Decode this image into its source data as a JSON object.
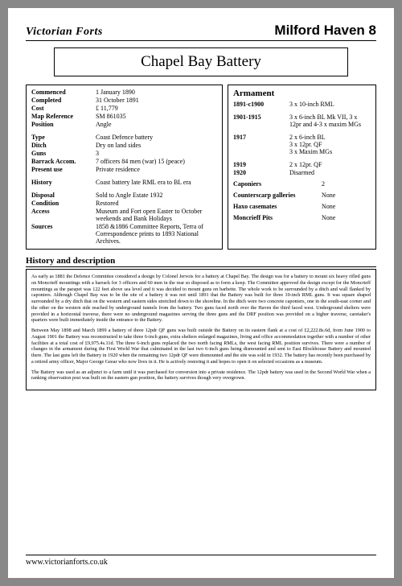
{
  "header": {
    "left": "Victorian Forts",
    "right": "Milford Haven   8"
  },
  "title": "Chapel Bay Battery",
  "left": {
    "commenced_lbl": "Commenced",
    "commenced": "1 January 1890",
    "completed_lbl": "Completed",
    "completed": "31 October 1891",
    "cost_lbl": "Cost",
    "cost": "£  11,779",
    "mapref_lbl": "Map Reference",
    "mapref": "SM 861035",
    "position_lbl": "Position",
    "position": "Angle",
    "type_lbl": "Type",
    "type": "Coast Defence battery",
    "ditch_lbl": "Ditch",
    "ditch": "Dry on land sides",
    "guns_lbl": "Guns",
    "guns": "3",
    "barrack_lbl": "Barrack Accom.",
    "barrack": "7 officers 84 men (war) 15 (peace)",
    "present_lbl": "Present use",
    "present": "Private residence",
    "history_lbl": "History",
    "history": "Coast battery late RML era to BL era",
    "disposal_lbl": "Disposal",
    "disposal": "Sold to Angle Estate 1932",
    "condition_lbl": "Condition",
    "condition": "Restored",
    "access_lbl": "Access",
    "access": "Museum and Fort open Easter to October weekends and Bank Holidays",
    "sources_lbl": "Sources",
    "sources": "1858 &1886 Committee Reports, Terra of Correspondence prints to 1893 National Archives."
  },
  "right": {
    "hdr": "Armament",
    "r1_lbl": "1891-c1900",
    "r1": "3 x 10-inch RML",
    "r2_lbl": "1901-1915",
    "r2": "3 x 6-inch BL Mk VII, 3 x 12pr and 4-3 x maxim MGs",
    "r3_lbl": "1917",
    "r3": "2 x 6-inch BL\n3 x 12pr. QF\n3 x Maxim MGs",
    "r4_lbl": "1919",
    "r4": "2 x 12pr. QF",
    "r5_lbl": "1920",
    "r5": "Disarmed",
    "cap_lbl": "Caponiers",
    "cap": "2",
    "csg_lbl": "Counterscarp galleries",
    "csg": "None",
    "haxo_lbl": "Haxo casemates",
    "haxo": "None",
    "monc_lbl": "Moncrieff Pits",
    "monc": "None"
  },
  "hist_hdr": "History and description",
  "hist": {
    "p1": "As early as 1881 the Defence Committee considered a design by Colonel Jervois for a battery at Chapel Bay. The design was for a battery to mount six heavy rifled guns on Moncrieff mountings with a barrack for 3 officers and 60 men in the rear so disposed as to form a keep. The Committee approved the design except for the Moncrieff mountings as the parapet was 122 feet above sea level and it was decided to mount guns on barbette. The whole work to be surrounded by a ditch and wall flanked by caponiers. Although Chapel Bay was to be the site of a battery it was not until 1891 that the Battery was built for three 10-inch RML guns. It was square shaped surrounded by a dry ditch that on the western and eastern sides stretched down to the shoreline. In the ditch were two concrete caponiers, one in the south-east corner and the other on the western side reached by underground tunnels from the battery. Two guns faced north over the Haven the third faced west. Underground shelters were provided in a horizontal traverse, there were no underground magazines serving the three guns and the DRF position was provided on a higher traverse, caretaker's quarters were built immediately inside the entrance to the Battery.",
    "p2": "Between May 1898 and March 1899 a battery of three 12pdr QF guns was built outside the Battery on its eastern flank at a cost of £2,222.8s.6d, from June 1900 to August 1901 the Battery was reconstructed to take three 6-inch guns, extra shelters enlarged magazines, living and office accommodation together with a number of other facilities at a total cost of £9,975.4s.11d. The three 6-inch guns replaced the two north facing RMLs, the west facing RML position survives. There were a number of changes in the armament during the First World War that culminated in the last two 6-inch guns being dismounted and sent to East Blockhouse Battery and mounted there. The last guns left the Battery in 1920 when the remaining two 12pdr QF were dismounted and the site was sold in 1932. The battery has recently been purchased by a retired army officer, Major George Geear who now lives in it. He is actively restoring it and hopes to open it on selected occasions as a museum.",
    "p3": "The Battery was used as an adjunct to a farm until it was purchased for conversion into a private residence. The 12pdr battery was used in the Second World War when a ranking observation post was built on the eastern gun position, the battery survives though very overgrown."
  },
  "footer": "www.victorianforts.co.uk"
}
